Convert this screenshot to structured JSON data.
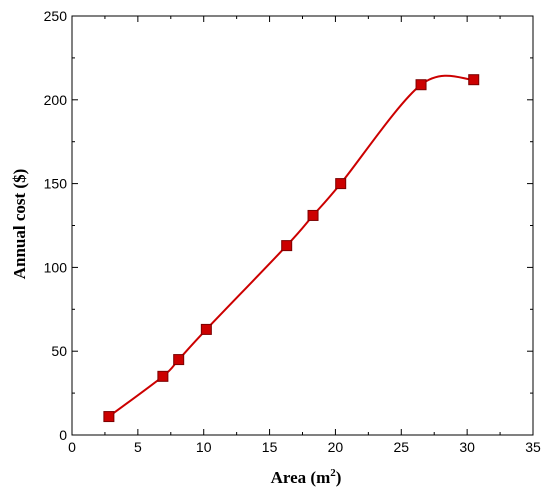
{
  "chart_data": {
    "type": "line",
    "xlabel": "Area (m",
    "xlabel_sup": "2",
    "xlabel_end": ")",
    "ylabel": "Annual cost ($)",
    "xlim": [
      0,
      35
    ],
    "ylim": [
      0,
      250
    ],
    "xticks": [
      0,
      5,
      10,
      15,
      20,
      25,
      30,
      35
    ],
    "yticks": [
      0,
      50,
      100,
      150,
      200,
      250
    ],
    "grid": false,
    "series": [
      {
        "marker": "square",
        "color": "#cc0000",
        "x": [
          2.8,
          6.9,
          8.1,
          10.2,
          16.3,
          18.3,
          20.4,
          26.5,
          30.5
        ],
        "y": [
          11,
          35,
          45,
          63,
          113,
          131,
          150,
          209,
          212
        ]
      }
    ]
  }
}
